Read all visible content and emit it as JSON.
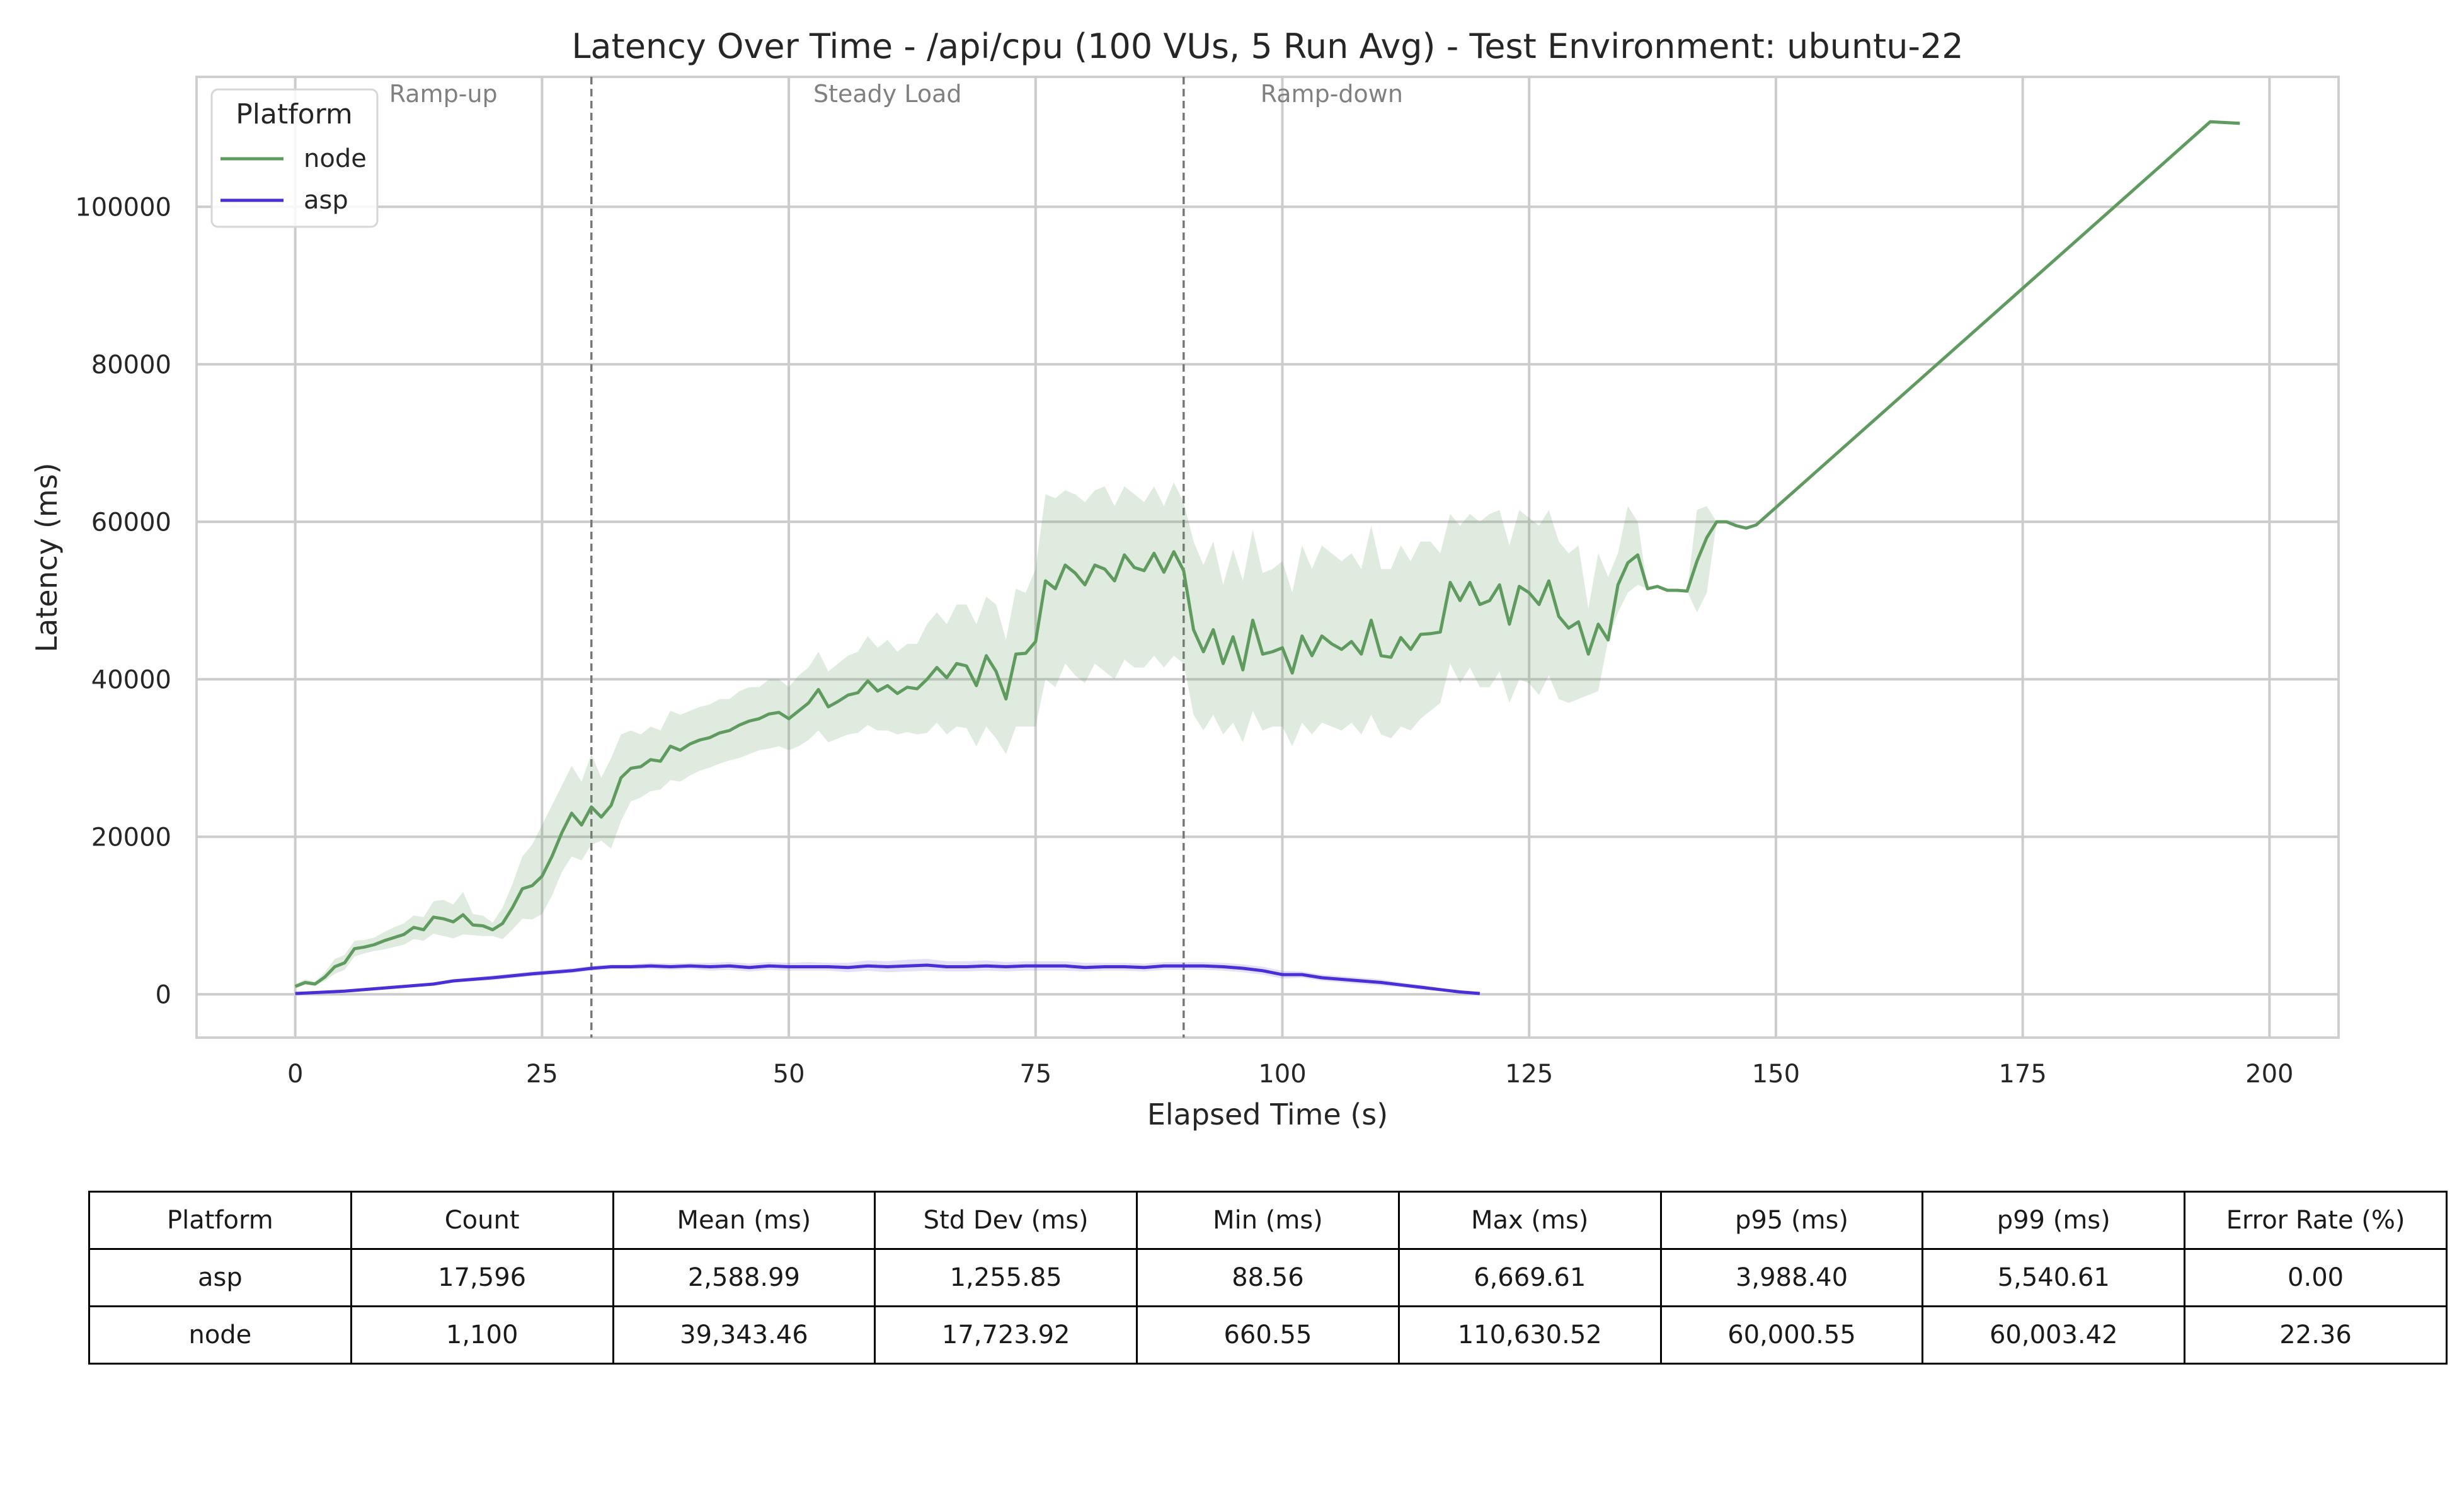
{
  "chart_data": {
    "type": "line",
    "title": "Latency Over Time - /api/cpu (100 VUs, 5 Run Avg) - Test Environment: ubuntu-22",
    "xlabel": "Elapsed Time (s)",
    "ylabel": "Latency (ms)",
    "xlim": [
      -10,
      207
    ],
    "ylim": [
      -5500,
      116500
    ],
    "xticks": [
      0,
      25,
      50,
      75,
      100,
      125,
      150,
      175,
      200
    ],
    "yticks": [
      0,
      20000,
      40000,
      60000,
      80000,
      100000
    ],
    "grid": true,
    "legend": {
      "title": "Platform",
      "placement": "top-left",
      "entries": [
        "node",
        "asp"
      ]
    },
    "phase_lines": [
      30,
      90
    ],
    "phase_labels": [
      {
        "text": "Ramp-up",
        "x": 15
      },
      {
        "text": "Steady Load",
        "x": 60
      },
      {
        "text": "Ramp-down",
        "x": 105
      }
    ],
    "series": [
      {
        "name": "node",
        "color": "#5f9a5f",
        "band_color": "#5f9a5f",
        "x": [
          0,
          1,
          2,
          3,
          4,
          5,
          6,
          7,
          8,
          9,
          10,
          11,
          12,
          13,
          14,
          15,
          16,
          17,
          18,
          19,
          20,
          21,
          22,
          23,
          24,
          25,
          26,
          27,
          28,
          29,
          30,
          31,
          32,
          33,
          34,
          35,
          36,
          37,
          38,
          39,
          40,
          41,
          42,
          43,
          44,
          45,
          46,
          47,
          48,
          49,
          50,
          51,
          52,
          53,
          54,
          55,
          56,
          57,
          58,
          59,
          60,
          61,
          62,
          63,
          64,
          65,
          66,
          67,
          68,
          69,
          70,
          71,
          72,
          73,
          74,
          75,
          76,
          77,
          78,
          79,
          80,
          81,
          82,
          83,
          84,
          85,
          86,
          87,
          88,
          89,
          90,
          91,
          92,
          93,
          94,
          95,
          96,
          97,
          98,
          99,
          100,
          101,
          102,
          103,
          104,
          105,
          106,
          107,
          108,
          109,
          110,
          111,
          112,
          113,
          114,
          115,
          116,
          117,
          118,
          119,
          120,
          121,
          122,
          123,
          124,
          125,
          126,
          127,
          128,
          129,
          130,
          131,
          132,
          133,
          134,
          135,
          136,
          137,
          138,
          139,
          140,
          141,
          142,
          143,
          144,
          145,
          146,
          147,
          148,
          194,
          197
        ],
        "y": [
          1000,
          1500,
          1300,
          2200,
          3500,
          4000,
          5800,
          6000,
          6300,
          6800,
          7200,
          7600,
          8500,
          8200,
          9800,
          9600,
          9200,
          10100,
          8800,
          8700,
          8200,
          9000,
          11000,
          13400,
          13800,
          15000,
          17500,
          20500,
          23000,
          21500,
          23800,
          22500,
          24000,
          27500,
          28700,
          28900,
          29800,
          29600,
          31500,
          31000,
          31800,
          32300,
          32600,
          33200,
          33500,
          34200,
          34700,
          35000,
          35600,
          35800,
          35000,
          36000,
          37000,
          38700,
          36500,
          37200,
          38000,
          38300,
          39800,
          38500,
          39200,
          38200,
          39000,
          38800,
          40000,
          41500,
          40200,
          42000,
          41700,
          39200,
          43000,
          41000,
          37500,
          43200,
          43300,
          44800,
          52500,
          51500,
          54500,
          53500,
          52000,
          54500,
          54000,
          52500,
          55800,
          54200,
          53800,
          56000,
          53600,
          56200,
          53800,
          46300,
          43500,
          46300,
          42000,
          45400,
          41200,
          47500,
          43200,
          43500,
          44000,
          40800,
          45500,
          43000,
          45500,
          44500,
          43800,
          44800,
          43200,
          47500,
          43000,
          42800,
          45300,
          43800,
          45700,
          45800,
          46000,
          52300,
          50000,
          52300,
          49500,
          50000,
          52000,
          47000,
          51800,
          51000,
          49500,
          52500,
          48000,
          46500,
          47300,
          43200,
          47000,
          45000,
          52000,
          54800,
          55800,
          51500,
          51800,
          51300,
          51300,
          51200,
          55000,
          58000,
          60000,
          60000,
          59500,
          59200,
          59600,
          110800,
          110600
        ],
        "ci_lower": [
          800,
          1200,
          1100,
          1700,
          2600,
          3100,
          4800,
          5200,
          5500,
          5700,
          6000,
          6300,
          7000,
          6800,
          7700,
          7400,
          7100,
          7600,
          7500,
          7400,
          7400,
          7000,
          8200,
          9600,
          9500,
          10200,
          12500,
          15500,
          17500,
          17000,
          19000,
          19500,
          18500,
          22000,
          24500,
          25000,
          25800,
          26000,
          27200,
          27000,
          27800,
          28400,
          28800,
          29300,
          29700,
          30000,
          30500,
          31000,
          31200,
          31500,
          31000,
          31500,
          32300,
          33500,
          32000,
          32500,
          33000,
          33200,
          34200,
          33500,
          33500,
          33000,
          33300,
          33000,
          33200,
          34500,
          33000,
          34000,
          33800,
          31500,
          34000,
          32500,
          30500,
          34000,
          34000,
          34000,
          40000,
          39000,
          42000,
          40500,
          39500,
          42000,
          41000,
          40000,
          42500,
          41500,
          41500,
          43000,
          41500,
          43000,
          42000,
          35500,
          33500,
          35500,
          33000,
          34500,
          32000,
          36000,
          33500,
          34000,
          34000,
          31500,
          34500,
          33000,
          34500,
          34000,
          33500,
          34500,
          33000,
          35500,
          33000,
          32500,
          34000,
          33500,
          35000,
          36000,
          37000,
          42000,
          39500,
          41500,
          39000,
          39000,
          41000,
          37000,
          40000,
          39500,
          38000,
          40500,
          37500,
          37000,
          37500,
          38000,
          38500,
          45000,
          48500,
          51000,
          52000,
          51500,
          51800,
          51300,
          51300,
          51200,
          48500,
          51000,
          60000,
          60000,
          59500,
          59200,
          59600,
          110800,
          110600
        ],
        "ci_upper": [
          1300,
          1900,
          1600,
          2800,
          4500,
          5000,
          6800,
          6900,
          7200,
          7900,
          8500,
          9000,
          10000,
          9800,
          11800,
          12000,
          11400,
          13000,
          10200,
          10000,
          9100,
          11000,
          14000,
          17500,
          19000,
          21500,
          24000,
          26500,
          29000,
          27000,
          30500,
          27500,
          30000,
          33000,
          33500,
          33000,
          34000,
          33500,
          36000,
          35500,
          36000,
          36500,
          36800,
          37500,
          37500,
          38500,
          39000,
          39000,
          40000,
          40000,
          39000,
          40500,
          41500,
          43500,
          41000,
          42000,
          43000,
          43500,
          45500,
          44000,
          45000,
          43500,
          44500,
          44500,
          47000,
          48500,
          47000,
          49500,
          49500,
          47000,
          50500,
          49500,
          45000,
          51500,
          51000,
          54000,
          63500,
          63000,
          64000,
          63500,
          62500,
          64000,
          64500,
          62000,
          64500,
          63500,
          62500,
          64500,
          62000,
          65000,
          62500,
          57500,
          54500,
          57500,
          52000,
          56500,
          52500,
          59000,
          53500,
          54000,
          55000,
          51000,
          57000,
          54000,
          57000,
          56000,
          55000,
          56000,
          54000,
          59500,
          54000,
          54000,
          57000,
          55000,
          57500,
          57500,
          56000,
          61000,
          59500,
          61000,
          60000,
          61000,
          61500,
          57000,
          61500,
          60500,
          59500,
          61500,
          57500,
          56000,
          57000,
          49000,
          56000,
          53000,
          56000,
          62000,
          60000,
          51500,
          51800,
          51300,
          51300,
          51200,
          61500,
          62000,
          60000,
          60000,
          59500,
          59200,
          59600,
          110800,
          110600
        ]
      },
      {
        "name": "asp",
        "color": "#4b2fd6",
        "band_color": "#7a64e8",
        "x": [
          0,
          5,
          10,
          14,
          16,
          20,
          24,
          28,
          30,
          32,
          34,
          36,
          38,
          40,
          42,
          44,
          46,
          48,
          50,
          52,
          54,
          56,
          58,
          60,
          62,
          64,
          66,
          68,
          70,
          72,
          74,
          76,
          78,
          80,
          82,
          84,
          86,
          88,
          90,
          92,
          94,
          96,
          98,
          100,
          102,
          104,
          106,
          108,
          110,
          112,
          114,
          116,
          118,
          120
        ],
        "y": [
          100,
          400,
          900,
          1300,
          1700,
          2100,
          2600,
          3000,
          3300,
          3500,
          3500,
          3600,
          3500,
          3600,
          3500,
          3600,
          3400,
          3600,
          3500,
          3500,
          3500,
          3400,
          3600,
          3500,
          3600,
          3700,
          3500,
          3500,
          3600,
          3500,
          3600,
          3600,
          3600,
          3400,
          3500,
          3500,
          3400,
          3600,
          3600,
          3600,
          3500,
          3300,
          3000,
          2500,
          2500,
          2100,
          1900,
          1700,
          1500,
          1200,
          900,
          600,
          300,
          100
        ],
        "ci_lower": [
          50,
          300,
          700,
          1100,
          1500,
          1800,
          2300,
          2700,
          3000,
          3200,
          3200,
          3200,
          3100,
          3200,
          3000,
          3100,
          2900,
          3100,
          3000,
          3000,
          3000,
          2800,
          3000,
          2800,
          2900,
          3000,
          2900,
          2900,
          3000,
          2900,
          3000,
          3000,
          3000,
          2900,
          3000,
          3000,
          2900,
          3100,
          3100,
          3100,
          3000,
          2800,
          2500,
          2000,
          2100,
          1700,
          1500,
          1300,
          1100,
          900,
          600,
          400,
          200,
          50
        ],
        "ci_upper": [
          150,
          500,
          1100,
          1500,
          1900,
          2400,
          2900,
          3300,
          3600,
          3800,
          3800,
          4000,
          3900,
          4000,
          4000,
          4100,
          3900,
          4100,
          4000,
          4100,
          4000,
          4000,
          4300,
          4200,
          4400,
          4500,
          4200,
          4200,
          4300,
          4100,
          4200,
          4200,
          4200,
          4000,
          4000,
          4000,
          3900,
          4100,
          4100,
          4100,
          4000,
          3800,
          3500,
          3000,
          2900,
          2500,
          2300,
          2100,
          1900,
          1500,
          1200,
          800,
          400,
          150
        ]
      }
    ]
  },
  "table": {
    "headers": [
      "Platform",
      "Count",
      "Mean (ms)",
      "Std Dev (ms)",
      "Min (ms)",
      "Max (ms)",
      "p95 (ms)",
      "p99 (ms)",
      "Error Rate (%)"
    ],
    "rows": [
      [
        "asp",
        "17,596",
        "2,588.99",
        "1,255.85",
        "88.56",
        "6,669.61",
        "3,988.40",
        "5,540.61",
        "0.00"
      ],
      [
        "node",
        "1,100",
        "39,343.46",
        "17,723.92",
        "660.55",
        "110,630.52",
        "60,000.55",
        "60,003.42",
        "22.36"
      ]
    ]
  }
}
